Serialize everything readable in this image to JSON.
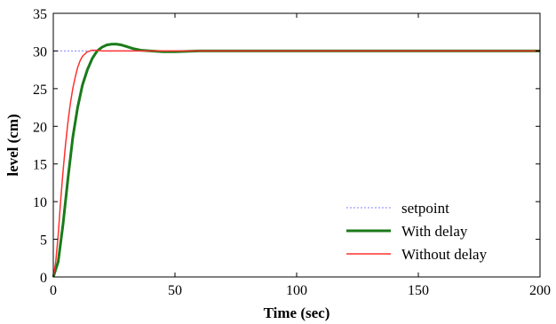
{
  "chart_data": {
    "type": "line",
    "xlabel": "Time (sec)",
    "ylabel": "level (cm)",
    "xlim": [
      0,
      200
    ],
    "ylim": [
      0,
      35
    ],
    "x_ticks": [
      "0",
      "50",
      "100",
      "150",
      "200"
    ],
    "y_ticks": [
      "0",
      "5",
      "10",
      "15",
      "20",
      "25",
      "30",
      "35"
    ],
    "grid": false,
    "legend_position": "bottom-right",
    "series": [
      {
        "name": "setpoint",
        "color": "#8080ff",
        "style": "dotted",
        "x": [
          0,
          200
        ],
        "y": [
          30,
          30
        ]
      },
      {
        "name": "With delay",
        "color": "#1a7a1a",
        "style": "solid-thick",
        "x": [
          0,
          2,
          4,
          6,
          8,
          10,
          12,
          14,
          16,
          18,
          20,
          22,
          24,
          26,
          28,
          30,
          33,
          36,
          40,
          45,
          50,
          60,
          80,
          100,
          150,
          200
        ],
        "y": [
          0,
          2,
          7,
          13,
          18.5,
          22.5,
          25.5,
          27.5,
          29,
          30,
          30.5,
          30.8,
          30.9,
          30.9,
          30.8,
          30.6,
          30.3,
          30.1,
          30,
          29.9,
          29.9,
          30,
          30,
          30,
          30,
          30
        ]
      },
      {
        "name": "Without delay",
        "color": "#ff3030",
        "style": "solid",
        "x": [
          0,
          1,
          2,
          3,
          4,
          5,
          6,
          7,
          8,
          9,
          10,
          11,
          12,
          14,
          16,
          18,
          20,
          25,
          30,
          40,
          60,
          100,
          150,
          200
        ],
        "y": [
          0,
          2,
          5.5,
          10,
          14,
          17.5,
          20.5,
          23,
          25,
          26.5,
          27.8,
          28.7,
          29.3,
          29.9,
          30.1,
          30.1,
          30,
          30,
          30,
          30,
          30,
          30,
          30,
          30
        ]
      }
    ]
  }
}
